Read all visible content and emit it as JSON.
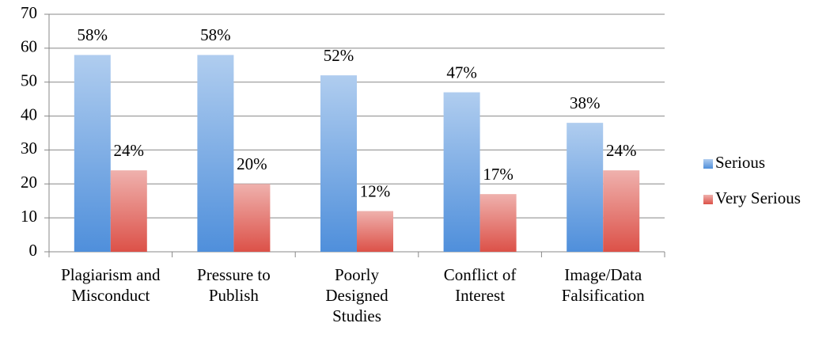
{
  "chart_data": {
    "type": "bar",
    "categories": [
      "Plagiarism and Misconduct",
      "Pressure to Publish",
      "Poorly Designed Studies",
      "Conflict of Interest",
      "Image/Data Falsification"
    ],
    "series": [
      {
        "name": "Serious",
        "color": "#4f8fdb",
        "values": [
          58,
          58,
          52,
          47,
          38
        ],
        "value_labels": [
          "58%",
          "58%",
          "52%",
          "47%",
          "38%"
        ]
      },
      {
        "name": "Very Serious",
        "color": "#dc5148",
        "values": [
          24,
          20,
          12,
          17,
          24
        ],
        "value_labels": [
          "24%",
          "20%",
          "12%",
          "17%",
          "24%"
        ]
      }
    ],
    "ylim": [
      0,
      70
    ],
    "yticks": [
      0,
      10,
      20,
      30,
      40,
      50,
      60,
      70
    ],
    "grid": true,
    "legend": "right"
  }
}
